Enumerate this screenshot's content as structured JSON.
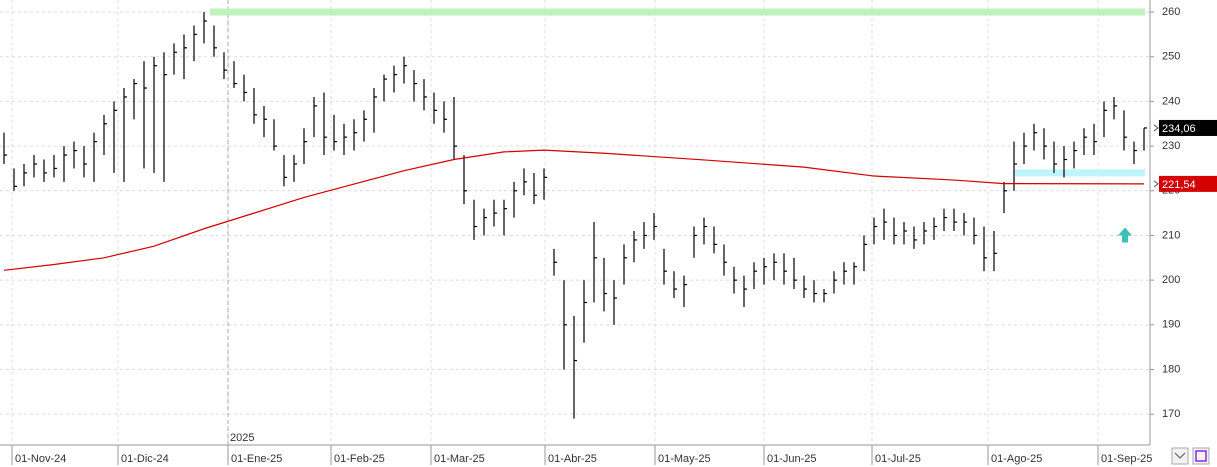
{
  "chart_data": {
    "type": "ohlc",
    "color": "#000000",
    "high": [
      233,
      225,
      226,
      228,
      227,
      228,
      230,
      231,
      230,
      233,
      237,
      240,
      243,
      245,
      249,
      250,
      251,
      253,
      255,
      257,
      260,
      257,
      251,
      249,
      246,
      243,
      239,
      236,
      228,
      228,
      234,
      241,
      242,
      237,
      235,
      236,
      238,
      243,
      246,
      248,
      250,
      247,
      245,
      242,
      240,
      241,
      228,
      218,
      216,
      218,
      218,
      222,
      225,
      224,
      225,
      207,
      200,
      192,
      200,
      213,
      205,
      200,
      208,
      211,
      213,
      215,
      207,
      202,
      201,
      212,
      214,
      212,
      208,
      203,
      201,
      204,
      205,
      206,
      206,
      205,
      201,
      200,
      198,
      202,
      204,
      204,
      210,
      214,
      216,
      214,
      213,
      212,
      213,
      214,
      216,
      216,
      215,
      214,
      212,
      211,
      222,
      231,
      233,
      235,
      234,
      231,
      230,
      231,
      234,
      235,
      240,
      241,
      238,
      231,
      234
    ],
    "low": [
      226,
      220,
      221,
      223,
      222,
      223,
      222,
      225,
      223,
      222,
      228,
      224,
      222,
      236,
      225,
      224,
      222,
      246,
      245,
      249,
      253,
      250,
      245,
      243,
      240,
      235,
      232,
      229,
      221,
      222,
      226,
      232,
      228,
      229,
      228,
      229,
      231,
      233,
      240,
      242,
      244,
      240,
      238,
      235,
      233,
      227,
      217,
      209,
      210,
      212,
      210,
      214,
      219,
      217,
      218,
      201,
      180,
      169,
      186,
      195,
      193,
      190,
      199,
      204,
      207,
      209,
      199,
      196,
      194,
      205,
      208,
      206,
      201,
      197,
      194,
      198,
      199,
      200,
      199,
      198,
      196,
      195,
      195,
      197,
      199,
      199,
      202,
      208,
      209,
      208,
      208,
      207,
      208,
      209,
      211,
      211,
      210,
      208,
      202,
      202,
      215,
      220,
      226,
      229,
      227,
      224,
      223,
      225,
      228,
      228,
      232,
      236,
      229,
      226,
      229
    ],
    "close": [
      228,
      221,
      224,
      226,
      224,
      225,
      228,
      229,
      226,
      231,
      235,
      238,
      241,
      244,
      243,
      248,
      246,
      251,
      252,
      255,
      258,
      252,
      247,
      244,
      242,
      237,
      236,
      230,
      223,
      226,
      231,
      239,
      232,
      231,
      232,
      233,
      236,
      241,
      245,
      246,
      248,
      244,
      241,
      238,
      236,
      230,
      220,
      212,
      214,
      215,
      216,
      220,
      222,
      219,
      223,
      204,
      190,
      182,
      195,
      205,
      197,
      196,
      205,
      209,
      210,
      212,
      202,
      198,
      199,
      210,
      212,
      208,
      204,
      200,
      198,
      202,
      203,
      204,
      202,
      200,
      198,
      197,
      197,
      200,
      202,
      203,
      208,
      212,
      213,
      210,
      211,
      209,
      211,
      212,
      214,
      213,
      213,
      210,
      205,
      206,
      220,
      226,
      230,
      233,
      230,
      226,
      227,
      229,
      232,
      231,
      238,
      239,
      232,
      229,
      234.06
    ],
    "last_close_label": {
      "value": 234.06,
      "label": "234,06"
    },
    "moving_average": {
      "color": "#d40000",
      "x": [
        0,
        5,
        10,
        15,
        20,
        25,
        30,
        35,
        40,
        45,
        50,
        54,
        60,
        70,
        80,
        87,
        95,
        100,
        114
      ],
      "values": [
        202.2,
        203.5,
        205,
        207.6,
        211.5,
        215,
        218.5,
        221.5,
        224.5,
        227,
        228.7,
        229.1,
        228.4,
        226.9,
        225.3,
        223.3,
        222.4,
        221.6,
        221.54
      ],
      "last_label": {
        "value": 221.54,
        "label": "221,54"
      }
    },
    "levels": [
      {
        "value": 260,
        "from": 20.6,
        "color": "#bff2bf"
      },
      {
        "value": 224,
        "from": 101.1,
        "color": "#bff4fa"
      }
    ],
    "arrow": {
      "x": 112.1,
      "value": 210,
      "color": "#3cc0b8"
    },
    "year_marker": {
      "value": 22.4,
      "label": "2025"
    },
    "xlim": [
      -0.4,
      114.6
    ],
    "xticks": [
      {
        "value": 0.8,
        "label": "01-Nov-24"
      },
      {
        "value": 11.4,
        "label": "01-Dic-24"
      },
      {
        "value": 22.4,
        "label": "01-Ene-25"
      },
      {
        "value": 32.7,
        "label": "01-Feb-25"
      },
      {
        "value": 42.7,
        "label": "01-Mar-25"
      },
      {
        "value": 54.1,
        "label": "01-Abr-25"
      },
      {
        "value": 65.1,
        "label": "01-May-25"
      },
      {
        "value": 76,
        "label": "01-Jun-25"
      },
      {
        "value": 86.8,
        "label": "01-Jul-25"
      },
      {
        "value": 98.4,
        "label": "01-Ago-25"
      },
      {
        "value": 109.4,
        "label": "01-Sep-25"
      }
    ],
    "ylim": [
      163.1,
      262.7
    ],
    "yticks": [
      170,
      180,
      190,
      200,
      210,
      220,
      230,
      240,
      250,
      260
    ],
    "grid": true
  }
}
